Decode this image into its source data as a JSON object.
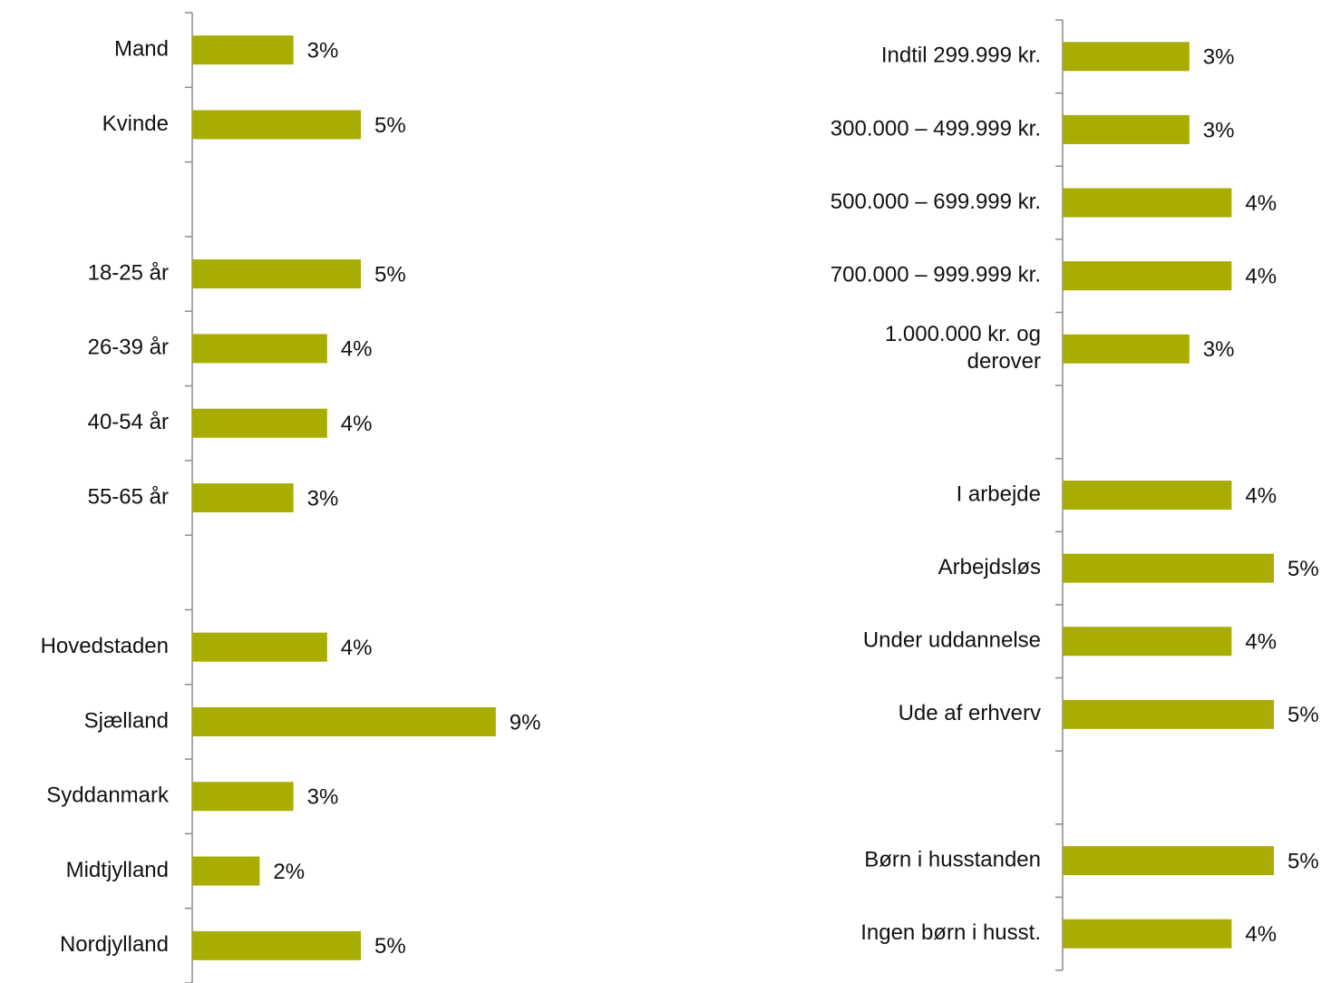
{
  "chart_data": [
    {
      "type": "bar",
      "orientation": "horizontal",
      "color": "#a8ad00",
      "categories": [
        "Mand",
        "Kvinde",
        null,
        "18-25 år",
        "26-39 år",
        "40-54 år",
        "55-65 år",
        null,
        "Hovedstaden",
        "Sjælland",
        "Syddanmark",
        "Midtjylland",
        "Nordjylland"
      ],
      "values": [
        3,
        5,
        null,
        5,
        4,
        4,
        3,
        null,
        4,
        9,
        3,
        2,
        5
      ],
      "value_labels": [
        "3%",
        "5%",
        null,
        "5%",
        "4%",
        "4%",
        "3%",
        null,
        "4%",
        "9%",
        "3%",
        "2%",
        "5%"
      ]
    },
    {
      "type": "bar",
      "orientation": "horizontal",
      "color": "#a8ad00",
      "categories": [
        "Indtil 299.999 kr.",
        "300.000 – 499.999 kr.",
        "500.000 – 699.999 kr.",
        "700.000 – 999.999 kr.",
        "1.000.000 kr. og derover",
        null,
        "I arbejde",
        "Arbejdsløs",
        "Under uddannelse",
        "Ude af erhverv",
        null,
        "Børn i husstanden",
        "Ingen børn i husst."
      ],
      "values": [
        3,
        3,
        4,
        4,
        3,
        null,
        4,
        5,
        4,
        5,
        null,
        5,
        4
      ],
      "value_labels": [
        "3%",
        "3%",
        "4%",
        "4%",
        "3%",
        null,
        "4%",
        "5%",
        "4%",
        "5%",
        null,
        "5%",
        "4%"
      ]
    }
  ]
}
